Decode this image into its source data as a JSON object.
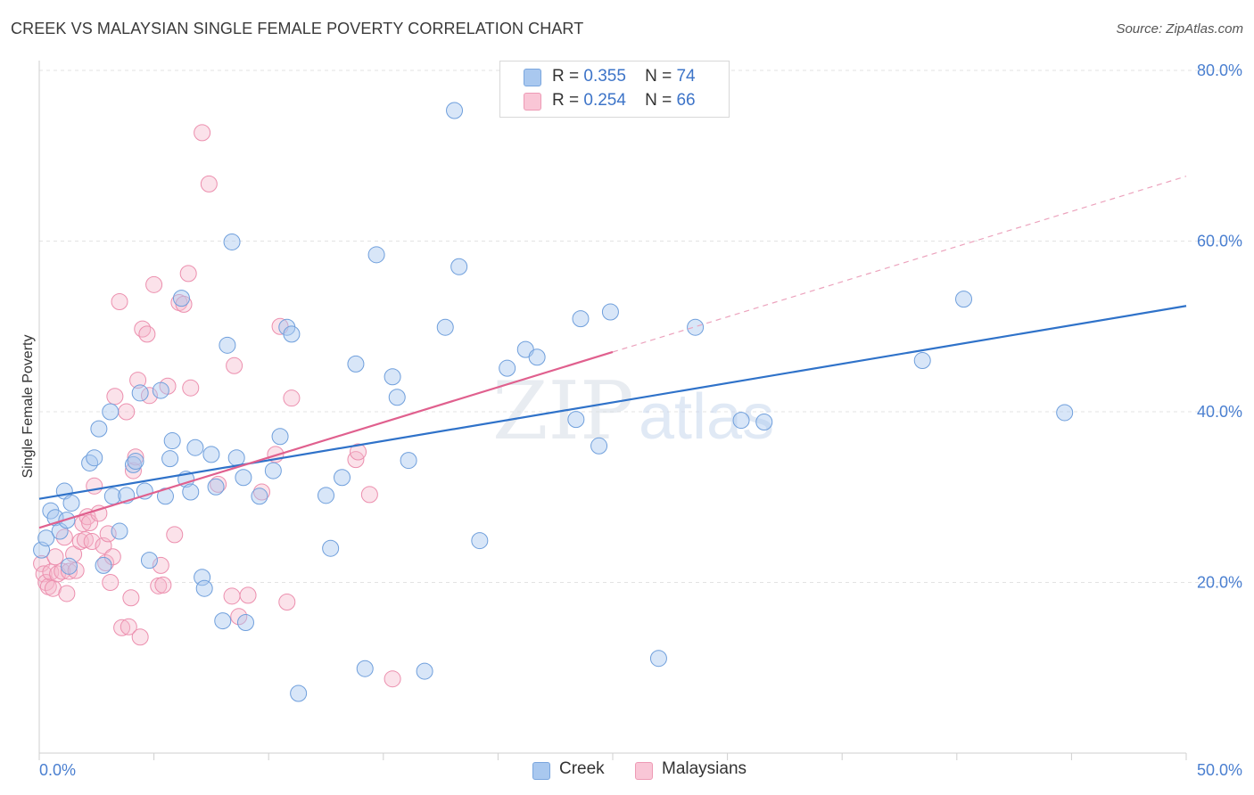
{
  "title": "CREEK VS MALAYSIAN SINGLE FEMALE POVERTY CORRELATION CHART",
  "source": "Source: ZipAtlas.com",
  "watermark": {
    "zip": "ZIP",
    "atlas": "atlas"
  },
  "legend": {
    "r_label": "R =",
    "n_label": "N =",
    "entries": [
      {
        "r": "0.355",
        "n": "74"
      },
      {
        "r": "0.254",
        "n": "66"
      }
    ]
  },
  "colors": {
    "creek": "#a9c8ef",
    "creek_line": "#2f72c9",
    "malaysians": "#f6b6cb",
    "malaysians_line": "#e0608e"
  },
  "chart_data": {
    "type": "scatter",
    "title": "CREEK VS MALAYSIAN SINGLE FEMALE POVERTY CORRELATION CHART",
    "ylabel": "Single Female Poverty",
    "xlabel": "",
    "xlim": [
      0,
      50
    ],
    "ylim": [
      0,
      80
    ],
    "x_tick_labels": [
      "0.0%",
      "50.0%"
    ],
    "y_tick_labels": [
      "20.0%",
      "40.0%",
      "60.0%",
      "80.0%"
    ],
    "y_ticks": [
      20,
      40,
      60,
      80
    ],
    "legend_position": "top-center",
    "grid": true,
    "series": [
      {
        "name": "Creek",
        "r": 0.355,
        "n": 74,
        "trend": {
          "x": [
            0,
            50
          ],
          "y": [
            29.8,
            52.4
          ]
        },
        "points": [
          [
            0.1,
            23.8
          ],
          [
            0.3,
            25.2
          ],
          [
            0.5,
            28.4
          ],
          [
            0.7,
            27.6
          ],
          [
            0.9,
            26.0
          ],
          [
            1.1,
            30.7
          ],
          [
            1.3,
            21.9
          ],
          [
            1.2,
            27.3
          ],
          [
            1.4,
            29.3
          ],
          [
            2.2,
            34.0
          ],
          [
            2.4,
            34.6
          ],
          [
            2.6,
            38.0
          ],
          [
            2.8,
            22.0
          ],
          [
            3.1,
            40.0
          ],
          [
            3.2,
            30.1
          ],
          [
            3.5,
            26.0
          ],
          [
            3.8,
            30.2
          ],
          [
            4.1,
            33.8
          ],
          [
            4.2,
            34.2
          ],
          [
            4.4,
            42.2
          ],
          [
            4.6,
            30.7
          ],
          [
            4.8,
            22.6
          ],
          [
            5.3,
            42.5
          ],
          [
            5.5,
            30.1
          ],
          [
            5.7,
            34.5
          ],
          [
            5.8,
            36.6
          ],
          [
            6.2,
            53.3
          ],
          [
            6.4,
            32.1
          ],
          [
            6.6,
            30.6
          ],
          [
            6.8,
            35.8
          ],
          [
            7.1,
            20.6
          ],
          [
            7.2,
            19.3
          ],
          [
            7.5,
            35.0
          ],
          [
            7.7,
            31.2
          ],
          [
            8.0,
            15.5
          ],
          [
            8.2,
            47.8
          ],
          [
            8.4,
            59.9
          ],
          [
            8.6,
            34.6
          ],
          [
            8.9,
            32.3
          ],
          [
            9.0,
            15.3
          ],
          [
            9.6,
            30.1
          ],
          [
            10.2,
            33.1
          ],
          [
            10.5,
            37.1
          ],
          [
            10.8,
            49.9
          ],
          [
            11.0,
            49.1
          ],
          [
            11.3,
            7.0
          ],
          [
            12.5,
            30.2
          ],
          [
            12.7,
            24.0
          ],
          [
            13.2,
            32.3
          ],
          [
            13.8,
            45.6
          ],
          [
            14.2,
            9.9
          ],
          [
            14.7,
            58.4
          ],
          [
            15.4,
            44.1
          ],
          [
            15.6,
            41.7
          ],
          [
            16.1,
            34.3
          ],
          [
            16.8,
            9.6
          ],
          [
            17.7,
            49.9
          ],
          [
            18.1,
            75.3
          ],
          [
            18.3,
            57.0
          ],
          [
            19.2,
            24.9
          ],
          [
            20.4,
            45.1
          ],
          [
            21.2,
            47.3
          ],
          [
            21.7,
            46.4
          ],
          [
            23.4,
            39.1
          ],
          [
            23.6,
            50.9
          ],
          [
            24.4,
            36.0
          ],
          [
            24.9,
            51.7
          ],
          [
            27.0,
            11.1
          ],
          [
            28.6,
            49.9
          ],
          [
            30.6,
            39.0
          ],
          [
            31.6,
            38.8
          ],
          [
            38.5,
            46.0
          ],
          [
            40.3,
            53.2
          ],
          [
            44.7,
            39.9
          ]
        ]
      },
      {
        "name": "Malaysians",
        "r": 0.254,
        "n": 66,
        "trend": {
          "x": [
            0,
            25
          ],
          "y": [
            26.4,
            47.0
          ]
        },
        "trend_dashed": {
          "x": [
            25,
            50
          ],
          "y": [
            47.0,
            67.6
          ]
        },
        "points": [
          [
            0.1,
            22.2
          ],
          [
            0.2,
            21.0
          ],
          [
            0.3,
            20.0
          ],
          [
            0.4,
            19.5
          ],
          [
            0.5,
            21.2
          ],
          [
            0.6,
            19.3
          ],
          [
            0.7,
            23.0
          ],
          [
            0.8,
            21.0
          ],
          [
            1.0,
            21.3
          ],
          [
            1.1,
            25.3
          ],
          [
            1.2,
            18.7
          ],
          [
            1.3,
            21.3
          ],
          [
            1.5,
            23.3
          ],
          [
            1.6,
            21.4
          ],
          [
            1.8,
            24.8
          ],
          [
            1.9,
            26.9
          ],
          [
            2.0,
            25.0
          ],
          [
            2.1,
            27.7
          ],
          [
            2.2,
            27.0
          ],
          [
            2.3,
            24.8
          ],
          [
            2.4,
            31.3
          ],
          [
            2.6,
            28.1
          ],
          [
            2.8,
            24.3
          ],
          [
            2.9,
            22.3
          ],
          [
            3.0,
            25.7
          ],
          [
            3.1,
            20.0
          ],
          [
            3.2,
            23.0
          ],
          [
            3.3,
            41.8
          ],
          [
            3.5,
            52.9
          ],
          [
            3.6,
            14.7
          ],
          [
            3.8,
            40.0
          ],
          [
            3.9,
            14.8
          ],
          [
            4.0,
            18.2
          ],
          [
            4.1,
            33.1
          ],
          [
            4.2,
            34.7
          ],
          [
            4.3,
            43.7
          ],
          [
            4.4,
            13.6
          ],
          [
            4.5,
            49.7
          ],
          [
            4.7,
            49.1
          ],
          [
            4.8,
            41.9
          ],
          [
            5.0,
            54.9
          ],
          [
            5.2,
            19.6
          ],
          [
            5.3,
            22.0
          ],
          [
            5.4,
            19.7
          ],
          [
            5.6,
            43.0
          ],
          [
            5.9,
            25.6
          ],
          [
            6.1,
            52.8
          ],
          [
            6.3,
            52.6
          ],
          [
            6.5,
            56.2
          ],
          [
            6.6,
            42.8
          ],
          [
            7.1,
            72.7
          ],
          [
            7.4,
            66.7
          ],
          [
            7.8,
            31.5
          ],
          [
            8.5,
            45.4
          ],
          [
            8.4,
            18.4
          ],
          [
            8.7,
            16.0
          ],
          [
            9.1,
            18.5
          ],
          [
            9.7,
            30.6
          ],
          [
            10.3,
            35.0
          ],
          [
            10.5,
            50.0
          ],
          [
            10.8,
            17.7
          ],
          [
            11.0,
            41.6
          ],
          [
            13.8,
            34.4
          ],
          [
            13.9,
            35.3
          ],
          [
            14.4,
            30.3
          ],
          [
            15.4,
            8.7
          ]
        ]
      }
    ]
  }
}
